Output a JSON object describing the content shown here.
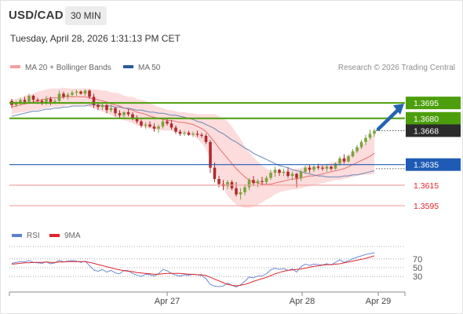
{
  "header": {
    "symbol": "USD/CAD",
    "timeframe": "30 MIN",
    "datetime": "Tuesday, April 28, 2026 1:31:13 PM CET"
  },
  "legend": {
    "ma20_label": "MA 20 + Bollinger Bands",
    "ma50_label": "MA 50",
    "source": "Research © 2026 Trading Central"
  },
  "colors": {
    "resistance": "#4d9e0c",
    "support": "#1f5bb5",
    "level_red": "#e0242b",
    "price": "#2b2b2b",
    "bull_candle": "#7da23f",
    "bear_candle": "#b22a2a",
    "ma20": "#e56f6f",
    "ma50": "#6a85b8",
    "bands_fill": "#fbd6d6",
    "rsi": "#5b7fd4",
    "rsi_ma": "#e0242b",
    "arrow": "#2463b2"
  },
  "chart_data": [
    {
      "type": "candlestick",
      "title": "USD/CAD",
      "timeframe": "30 MIN",
      "x_tick_labels": [
        "Apr 27",
        "Apr 28",
        "Apr 29"
      ],
      "ylim": [
        1.3579,
        1.3718
      ],
      "last_price": 1.3668,
      "series": [
        {
          "name": "MA 20 + Bollinger Bands"
        },
        {
          "name": "MA 50"
        }
      ],
      "ohlc": [
        [
          1.3697,
          1.3699,
          1.369,
          1.3693
        ],
        [
          1.3693,
          1.3697,
          1.3691,
          1.3695
        ],
        [
          1.3695,
          1.37,
          1.3693,
          1.3698
        ],
        [
          1.3698,
          1.3701,
          1.3694,
          1.3696
        ],
        [
          1.3696,
          1.3704,
          1.3694,
          1.3702
        ],
        [
          1.3702,
          1.3703,
          1.3696,
          1.3698
        ],
        [
          1.3698,
          1.37,
          1.3694,
          1.3697
        ],
        [
          1.3697,
          1.3699,
          1.3693,
          1.3695
        ],
        [
          1.3695,
          1.3702,
          1.3693,
          1.3699
        ],
        [
          1.3699,
          1.3701,
          1.3693,
          1.3696
        ],
        [
          1.3696,
          1.3699,
          1.3694,
          1.3697
        ],
        [
          1.3697,
          1.3707,
          1.3695,
          1.3704
        ],
        [
          1.3704,
          1.3706,
          1.3699,
          1.3701
        ],
        [
          1.3701,
          1.3705,
          1.3698,
          1.3703
        ],
        [
          1.3703,
          1.3707,
          1.3701,
          1.3705
        ],
        [
          1.3705,
          1.3708,
          1.3702,
          1.3706
        ],
        [
          1.3706,
          1.3707,
          1.3703,
          1.3704
        ],
        [
          1.3704,
          1.3708,
          1.3702,
          1.3707
        ],
        [
          1.3707,
          1.3708,
          1.3699,
          1.3701
        ],
        [
          1.3701,
          1.3704,
          1.369,
          1.3693
        ],
        [
          1.3693,
          1.3696,
          1.3688,
          1.3691
        ],
        [
          1.3691,
          1.3695,
          1.3688,
          1.3693
        ],
        [
          1.3693,
          1.3694,
          1.3685,
          1.3688
        ],
        [
          1.3688,
          1.3693,
          1.3686,
          1.369
        ],
        [
          1.369,
          1.3691,
          1.3682,
          1.3685
        ],
        [
          1.3685,
          1.3688,
          1.368,
          1.3683
        ],
        [
          1.3683,
          1.3687,
          1.368,
          1.3686
        ],
        [
          1.3686,
          1.3689,
          1.3682,
          1.3684
        ],
        [
          1.3684,
          1.3686,
          1.3678,
          1.368
        ],
        [
          1.368,
          1.3683,
          1.3675,
          1.3677
        ],
        [
          1.3677,
          1.3679,
          1.3671,
          1.3673
        ],
        [
          1.3673,
          1.3676,
          1.367,
          1.3674
        ],
        [
          1.3674,
          1.3677,
          1.3671,
          1.3672
        ],
        [
          1.3672,
          1.3675,
          1.3667,
          1.367
        ],
        [
          1.367,
          1.3674,
          1.3666,
          1.3672
        ],
        [
          1.3672,
          1.3679,
          1.367,
          1.3677
        ],
        [
          1.3677,
          1.368,
          1.3673,
          1.3675
        ],
        [
          1.3675,
          1.3678,
          1.3669,
          1.3671
        ],
        [
          1.3671,
          1.3673,
          1.3665,
          1.3667
        ],
        [
          1.3667,
          1.3669,
          1.3663,
          1.3665
        ],
        [
          1.3665,
          1.3668,
          1.3663,
          1.3666
        ],
        [
          1.3666,
          1.3668,
          1.3663,
          1.3664
        ],
        [
          1.3664,
          1.3667,
          1.3662,
          1.3665
        ],
        [
          1.3665,
          1.3668,
          1.3662,
          1.3664
        ],
        [
          1.3664,
          1.3666,
          1.3661,
          1.3663
        ],
        [
          1.3663,
          1.3665,
          1.3655,
          1.3657
        ],
        [
          1.3657,
          1.3659,
          1.3627,
          1.3632
        ],
        [
          1.3632,
          1.3637,
          1.3618,
          1.3621
        ],
        [
          1.3621,
          1.3624,
          1.3613,
          1.3616
        ],
        [
          1.3616,
          1.362,
          1.361,
          1.3614
        ],
        [
          1.3614,
          1.362,
          1.3611,
          1.3618
        ],
        [
          1.3618,
          1.362,
          1.361,
          1.3612
        ],
        [
          1.3612,
          1.3618,
          1.3604,
          1.3606
        ],
        [
          1.3606,
          1.3612,
          1.3601,
          1.3608
        ],
        [
          1.3608,
          1.3616,
          1.3605,
          1.3613
        ],
        [
          1.3613,
          1.3622,
          1.361,
          1.362
        ],
        [
          1.362,
          1.3624,
          1.3614,
          1.3617
        ],
        [
          1.3617,
          1.3621,
          1.3613,
          1.3619
        ],
        [
          1.3619,
          1.3623,
          1.3615,
          1.3618
        ],
        [
          1.3618,
          1.3624,
          1.3616,
          1.3622
        ],
        [
          1.3622,
          1.363,
          1.362,
          1.3627
        ],
        [
          1.3627,
          1.3633,
          1.3623,
          1.363
        ],
        [
          1.363,
          1.3631,
          1.3624,
          1.3627
        ],
        [
          1.3627,
          1.3631,
          1.3624,
          1.3628
        ],
        [
          1.3628,
          1.3632,
          1.3622,
          1.3624
        ],
        [
          1.3624,
          1.3628,
          1.362,
          1.3626
        ],
        [
          1.3626,
          1.3627,
          1.3613,
          1.3622
        ],
        [
          1.3622,
          1.363,
          1.3619,
          1.3628
        ],
        [
          1.3628,
          1.3634,
          1.3626,
          1.3632
        ],
        [
          1.3632,
          1.3635,
          1.3627,
          1.363
        ],
        [
          1.363,
          1.3635,
          1.3628,
          1.3633
        ],
        [
          1.3633,
          1.3636,
          1.363,
          1.3632
        ],
        [
          1.3632,
          1.3634,
          1.3629,
          1.3631
        ],
        [
          1.3631,
          1.3635,
          1.3628,
          1.3633
        ],
        [
          1.3633,
          1.3634,
          1.3629,
          1.3631
        ],
        [
          1.3631,
          1.3637,
          1.363,
          1.3636
        ],
        [
          1.3636,
          1.3643,
          1.3634,
          1.3641
        ],
        [
          1.3641,
          1.3645,
          1.3636,
          1.3638
        ],
        [
          1.3638,
          1.3645,
          1.3637,
          1.3643
        ],
        [
          1.3643,
          1.365,
          1.3642,
          1.3648
        ],
        [
          1.3648,
          1.3654,
          1.3646,
          1.3652
        ],
        [
          1.3652,
          1.3659,
          1.365,
          1.3657
        ],
        [
          1.3657,
          1.3664,
          1.3654,
          1.3661
        ],
        [
          1.3661,
          1.3669,
          1.3659,
          1.3665
        ],
        [
          1.3665,
          1.367,
          1.3662,
          1.3668
        ]
      ],
      "ma20": [
        1.3691,
        1.3692,
        1.3693,
        1.3694,
        1.3695,
        1.3696,
        1.3697,
        1.3698,
        1.3699,
        1.37,
        1.37,
        1.37,
        1.3701,
        1.3701,
        1.3701,
        1.3701,
        1.3701,
        1.3701,
        1.37,
        1.3699,
        1.3698,
        1.3697,
        1.3696,
        1.3694,
        1.3693,
        1.3692,
        1.369,
        1.3689,
        1.3688,
        1.3686,
        1.3685,
        1.3684,
        1.3682,
        1.3681,
        1.368,
        1.3679,
        1.3678,
        1.3678,
        1.3677,
        1.3676,
        1.3676,
        1.3675,
        1.3674,
        1.3672,
        1.367,
        1.3667,
        1.3662,
        1.3657,
        1.3651,
        1.3646,
        1.3641,
        1.3636,
        1.3631,
        1.3627,
        1.3623,
        1.362,
        1.3618,
        1.3617,
        1.3616,
        1.3616,
        1.3616,
        1.3617,
        1.3618,
        1.3619,
        1.362,
        1.3621,
        1.3621,
        1.3622,
        1.3623,
        1.3624,
        1.3624,
        1.3625,
        1.3626,
        1.3627,
        1.3628,
        1.3629,
        1.363,
        1.3631,
        1.3633,
        1.3635,
        1.3637,
        1.3639,
        1.3641,
        1.3643,
        1.3646
      ],
      "ma50": [
        1.3682,
        1.3683,
        1.3684,
        1.3685,
        1.3686,
        1.3687,
        1.3687,
        1.3688,
        1.3689,
        1.3689,
        1.369,
        1.369,
        1.3691,
        1.3691,
        1.3692,
        1.3692,
        1.3692,
        1.3692,
        1.3693,
        1.3693,
        1.3693,
        1.3692,
        1.3692,
        1.3692,
        1.3691,
        1.3691,
        1.369,
        1.369,
        1.3689,
        1.3688,
        1.3688,
        1.3687,
        1.3686,
        1.3686,
        1.3685,
        1.3685,
        1.3684,
        1.3683,
        1.3683,
        1.3682,
        1.3681,
        1.368,
        1.3679,
        1.3677,
        1.3676,
        1.3674,
        1.3672,
        1.367,
        1.3667,
        1.3665,
        1.3662,
        1.3659,
        1.3657,
        1.3654,
        1.3651,
        1.3649,
        1.3646,
        1.3644,
        1.3642,
        1.364,
        1.3638,
        1.3636,
        1.3634,
        1.3633,
        1.3632,
        1.363,
        1.3629,
        1.3628,
        1.3627,
        1.3626,
        1.3625,
        1.3624,
        1.3624,
        1.3623,
        1.3623,
        1.3623,
        1.3623,
        1.3624,
        1.3624,
        1.3625,
        1.3625,
        1.3626,
        1.3627,
        1.3628,
        1.3629
      ],
      "bb_width": [
        0.0007,
        0.0007,
        0.0007,
        0.0008,
        0.0008,
        0.0008,
        0.0009,
        0.0009,
        0.0009,
        0.0009,
        0.0009,
        0.0009,
        0.0009,
        0.0008,
        0.0008,
        0.0008,
        0.0008,
        0.0008,
        0.0009,
        0.0009,
        0.001,
        0.001,
        0.0011,
        0.0011,
        0.0012,
        0.0012,
        0.0012,
        0.0012,
        0.0013,
        0.0013,
        0.0013,
        0.0013,
        0.0012,
        0.0012,
        0.0011,
        0.0011,
        0.001,
        0.001,
        0.001,
        0.001,
        0.001,
        0.001,
        0.0011,
        0.0012,
        0.0014,
        0.0017,
        0.0022,
        0.0027,
        0.0031,
        0.0034,
        0.0036,
        0.0036,
        0.0035,
        0.0033,
        0.003,
        0.0027,
        0.0024,
        0.0021,
        0.0018,
        0.0015,
        0.0013,
        0.0011,
        0.001,
        0.001,
        0.001,
        0.001,
        0.001,
        0.001,
        0.001,
        0.001,
        0.0009,
        0.0009,
        0.0009,
        0.0009,
        0.0009,
        0.0009,
        0.001,
        0.001,
        0.0011,
        0.0012,
        0.0013,
        0.0014,
        0.0016,
        0.0018,
        0.002
      ],
      "levels": [
        {
          "label": "1.3695",
          "value": 1.3695,
          "kind": "resistance"
        },
        {
          "label": "1.3680",
          "value": 1.368,
          "kind": "resistance"
        },
        {
          "label": "1.3668",
          "value": 1.3668,
          "kind": "last-price"
        },
        {
          "label": "1.3635",
          "value": 1.3635,
          "kind": "pivot"
        },
        {
          "label": "1.3615",
          "value": 1.3615,
          "kind": "support"
        },
        {
          "label": "1.3595",
          "value": 1.3595,
          "kind": "support"
        }
      ],
      "arrow": {
        "direction": "up",
        "from": 1.3668,
        "to": 1.3695
      }
    },
    {
      "type": "line",
      "series": [
        {
          "name": "RSI"
        },
        {
          "name": "9MA"
        }
      ],
      "ylim": [
        0,
        100
      ],
      "y_tick_labels": [
        "70",
        "50",
        "30"
      ],
      "y_ticks": [
        70,
        50,
        30
      ],
      "rsi": [
        60,
        62,
        64,
        63,
        66,
        62,
        61,
        60,
        63,
        59,
        61,
        67,
        63,
        65,
        66,
        65,
        62,
        65,
        55,
        45,
        42,
        46,
        40,
        44,
        38,
        36,
        44,
        43,
        37,
        33,
        30,
        35,
        34,
        31,
        36,
        46,
        43,
        37,
        33,
        31,
        34,
        33,
        35,
        34,
        32,
        25,
        12,
        8,
        7,
        8,
        15,
        10,
        6,
        11,
        19,
        29,
        27,
        31,
        31,
        36,
        45,
        49,
        46,
        48,
        44,
        47,
        40,
        52,
        58,
        55,
        58,
        57,
        56,
        59,
        56,
        62,
        68,
        62,
        66,
        70,
        74,
        77,
        80,
        82,
        84
      ],
      "rsi_ma": [
        58,
        59,
        60,
        61,
        61,
        62,
        62,
        62,
        63,
        62,
        62,
        63,
        63,
        64,
        64,
        64,
        64,
        64,
        62,
        60,
        57,
        55,
        52,
        50,
        47,
        45,
        43,
        42,
        41,
        39,
        38,
        37,
        36,
        35,
        35,
        36,
        37,
        37,
        37,
        37,
        36,
        35,
        35,
        34,
        34,
        32,
        28,
        24,
        20,
        16,
        12,
        10,
        9,
        10,
        12,
        15,
        19,
        22,
        25,
        28,
        32,
        36,
        39,
        42,
        44,
        45,
        46,
        47,
        49,
        51,
        53,
        54,
        56,
        57,
        57,
        58,
        59,
        61,
        63,
        65,
        67,
        69,
        71,
        74,
        77
      ]
    }
  ]
}
